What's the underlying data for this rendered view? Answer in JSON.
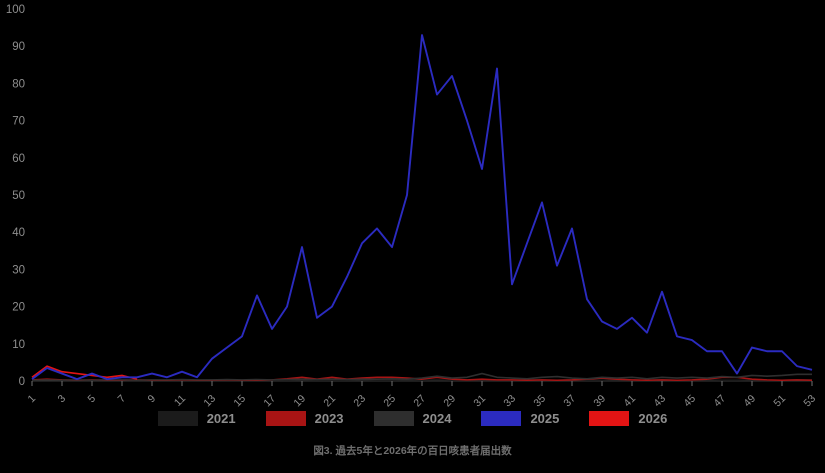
{
  "chart_data": {
    "type": "line",
    "title": "図3. 過去5年と2026年の百日咳患者届出数",
    "xlabel": "",
    "ylabel": "",
    "x_unit": "week",
    "x": [
      1,
      2,
      3,
      4,
      5,
      6,
      7,
      8,
      9,
      10,
      11,
      12,
      13,
      14,
      15,
      16,
      17,
      18,
      19,
      20,
      21,
      22,
      23,
      24,
      25,
      26,
      27,
      28,
      29,
      30,
      31,
      32,
      33,
      34,
      35,
      36,
      37,
      38,
      39,
      40,
      41,
      42,
      43,
      44,
      45,
      46,
      47,
      48,
      49,
      50,
      51,
      52,
      53
    ],
    "xtick_labels": [
      "1",
      "3",
      "5",
      "7",
      "9",
      "11",
      "13",
      "15",
      "17",
      "19",
      "21",
      "23",
      "25",
      "27",
      "29",
      "31",
      "33",
      "35",
      "37",
      "39",
      "41",
      "43",
      "45",
      "47",
      "49",
      "51",
      "53"
    ],
    "yticks": [
      "0",
      "10",
      "20",
      "30",
      "40",
      "50",
      "60",
      "70",
      "80",
      "90",
      "100"
    ],
    "ylim": [
      0,
      100
    ],
    "xlim": [
      1,
      53
    ],
    "grid": "off",
    "legend_position": "bottom",
    "background_color": "#000000",
    "tick_label_color": "#8e8e8e",
    "axis_line_color": "#3a3a3a",
    "series": [
      {
        "name": "2021",
        "color": "#1b1b1b",
        "values": [
          0.3,
          0.4,
          0.3,
          0.2,
          0.2,
          0.3,
          0.2,
          0.2,
          0.3,
          0.2,
          0.2,
          0.2,
          0.3,
          0.2,
          0.2,
          0.3,
          0.2,
          0.2,
          0.3,
          0.2,
          0.2,
          0.2,
          0.3,
          0.2,
          0.2,
          0.3,
          0.2,
          0.3,
          0.2,
          0.2,
          0.3,
          0.2,
          0.2,
          0.3,
          0.2,
          0.2,
          0.3,
          0.2,
          0.2,
          0.3,
          0.2,
          0.2,
          0.3,
          0.2,
          0.2,
          0.3,
          0.2,
          0.2,
          0.3,
          0.2,
          0.2,
          0.3,
          0.3
        ]
      },
      {
        "name": "2023",
        "color": "#a81414",
        "values": [
          0.3,
          0.5,
          0.3,
          0.2,
          0.3,
          0.2,
          0.2,
          0.3,
          0.2,
          0.2,
          0.3,
          0.2,
          0.2,
          0.3,
          0.2,
          0.2,
          0.3,
          0.6,
          1,
          0.5,
          1,
          0.5,
          0.8,
          1,
          1,
          0.8,
          0.5,
          1,
          0.5,
          0.3,
          0.5,
          0.3,
          0.3,
          0.2,
          0.3,
          0.2,
          0.3,
          0.5,
          0.8,
          0.5,
          0.3,
          0.2,
          0.3,
          0.2,
          0.3,
          0.5,
          1,
          1,
          0.5,
          0.3,
          0.2,
          0.3,
          0.2
        ]
      },
      {
        "name": "2024",
        "color": "#2e2e2e",
        "values": [
          0.2,
          0.3,
          0.2,
          0.3,
          0.2,
          0.3,
          0.3,
          0.2,
          0.3,
          0.3,
          0.4,
          0.3,
          0.3,
          0.4,
          0.3,
          0.4,
          0.3,
          0.4,
          0.5,
          0.4,
          0.5,
          0.4,
          0.5,
          0.5,
          0.6,
          0.5,
          0.8,
          1.3,
          0.8,
          1,
          2,
          1,
          0.8,
          0.6,
          1,
          1.2,
          0.8,
          0.6,
          1,
          0.8,
          1,
          0.6,
          1,
          0.8,
          1,
          0.8,
          1.2,
          1,
          1.5,
          1.3,
          1.5,
          1.8,
          1.8
        ]
      },
      {
        "name": "2025",
        "color": "#2b2bc0",
        "values": [
          0.5,
          3.5,
          2,
          0.5,
          2,
          0.5,
          1,
          1,
          2,
          1,
          2.5,
          1,
          6,
          9,
          12,
          23,
          14,
          20,
          36,
          17,
          20,
          28,
          37,
          41,
          36,
          50,
          93,
          77,
          82,
          70,
          57,
          84,
          26,
          37,
          48,
          31,
          41,
          22,
          16,
          14,
          17,
          13,
          24,
          12,
          11,
          8,
          8,
          2,
          9,
          8,
          8,
          4,
          3
        ]
      },
      {
        "name": "2026",
        "color": "#e31414",
        "values": [
          1,
          4,
          2.5,
          2,
          1.5,
          1,
          1.5,
          0.5,
          null,
          null,
          null,
          null,
          null,
          null,
          null,
          null,
          null,
          null,
          null,
          null,
          null,
          null,
          null,
          null,
          null,
          null,
          null,
          null,
          null,
          null,
          null,
          null,
          null,
          null,
          null,
          null,
          null,
          null,
          null,
          null,
          null,
          null,
          null,
          null,
          null,
          null,
          null,
          null,
          null,
          null,
          null,
          null,
          null
        ]
      }
    ]
  }
}
